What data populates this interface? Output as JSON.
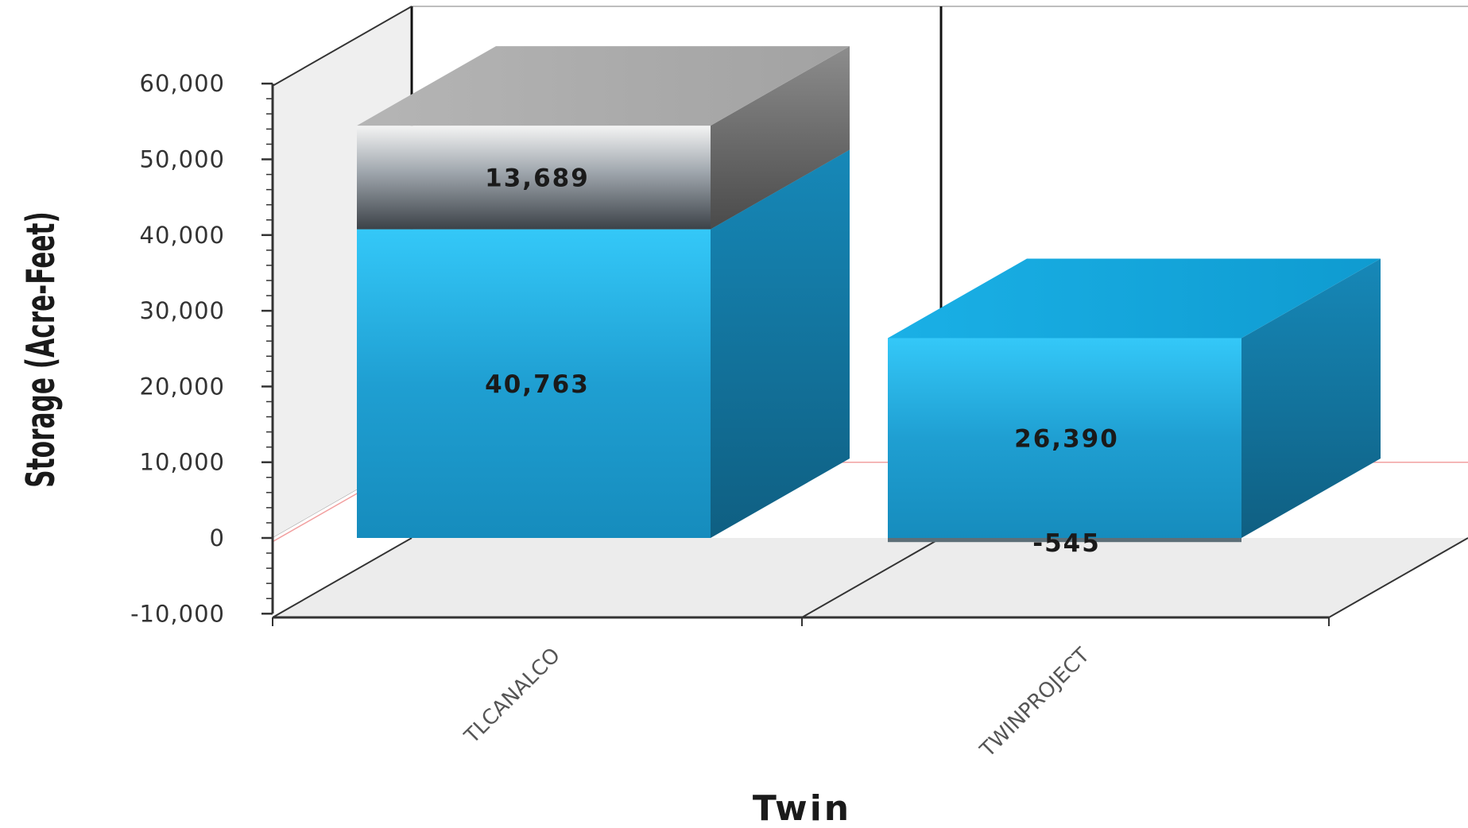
{
  "chart_data": {
    "type": "bar",
    "stacked": true,
    "three_d": true,
    "categories": [
      "TLCANALCO",
      "TWINPROJECT"
    ],
    "series": [
      {
        "values": [
          40763,
          26390
        ],
        "color": "#25b3e6"
      },
      {
        "values": [
          13689,
          -545
        ],
        "color": "#9a9a9a"
      }
    ],
    "data_labels": [
      [
        "40,763",
        "26,390"
      ],
      [
        "13,689",
        "-545"
      ]
    ],
    "ylabel": "Storage (Acre-Feet)",
    "xlabel": "Twin",
    "ylim": [
      -10000,
      60000
    ],
    "y_ticks": [
      -10000,
      0,
      10000,
      20000,
      30000,
      40000,
      50000,
      60000
    ],
    "y_tick_labels": [
      "-10,000",
      "0",
      "10,000",
      "20,000",
      "30,000",
      "40,000",
      "50,000",
      "60,000"
    ],
    "reference_line": {
      "value": 10000,
      "color": "#f2a0a0"
    },
    "grid": false,
    "legend": "none"
  }
}
